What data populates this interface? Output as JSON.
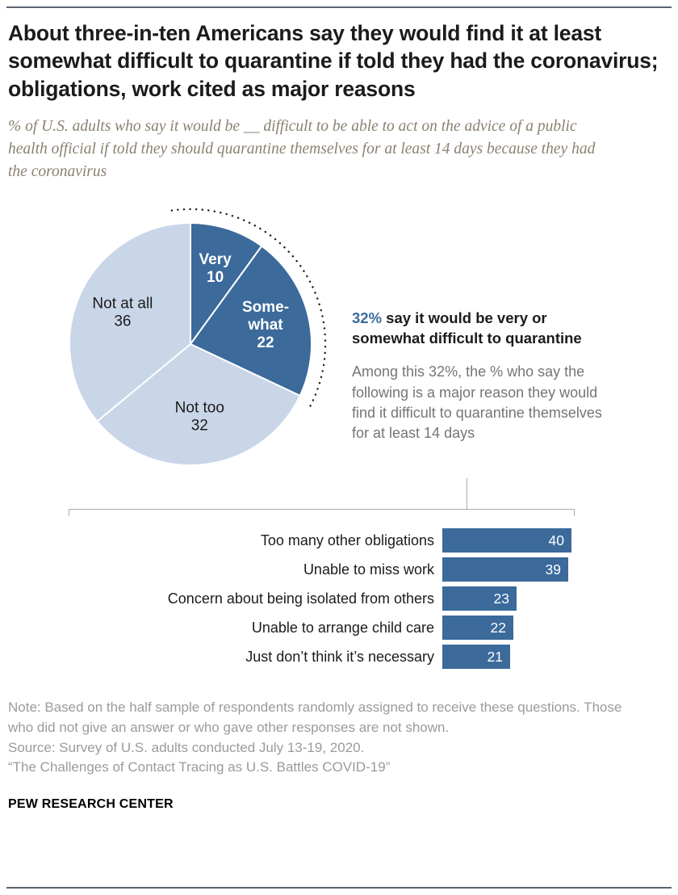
{
  "colors": {
    "dark_blue": "#3b6a9b",
    "light_blue": "#c9d6e8",
    "title_text": "#1b1b1b",
    "subtitle_text": "#8a8270",
    "explainer_text": "#757575",
    "note_text": "#9b9b9b",
    "divider_line": "#5a646d",
    "connector_line": "#ababab"
  },
  "header": {
    "title": "About three-in-ten Americans say they would find it at least somewhat difficult to quarantine if told they had the coronavirus; obligations, work cited as major reasons",
    "subtitle": "% of U.S. adults who say it would be __ difficult to be able to act on the advice of a public health official if told they should quarantine themselves for at least 14 days because they had the coronavirus"
  },
  "callout": {
    "highlight": "32%",
    "bold_rest": "say it would be very or somewhat difficult to quarantine",
    "explainer": "Among this 32%, the % who say the following is a major reason they would find it difficult to quarantine themselves for at least 14 days"
  },
  "chart_data": [
    {
      "type": "pie",
      "title": "Difficulty of quarantining for at least 14 days",
      "units": "% of U.S. adults",
      "start_angle_deg": 0,
      "direction": "clockwise",
      "segments": [
        {
          "label": "Very",
          "value": 10,
          "color": "#3b6a9b",
          "text_color": "#ffffff",
          "label_lines": [
            "Very",
            "10"
          ]
        },
        {
          "label": "Somewhat",
          "value": 22,
          "color": "#3b6a9b",
          "text_color": "#ffffff",
          "label_lines": [
            "Some-",
            "what",
            "22"
          ]
        },
        {
          "label": "Not too",
          "value": 32,
          "color": "#c9d6e8",
          "text_color": "#1b1b1b",
          "label_lines": [
            "Not too",
            "32"
          ]
        },
        {
          "label": "Not at all",
          "value": 36,
          "color": "#c9d6e8",
          "text_color": "#1b1b1b",
          "label_lines": [
            "Not at all",
            "36"
          ]
        }
      ],
      "annotation_arc_segments": [
        "Very",
        "Somewhat"
      ],
      "annotation_total": 32
    },
    {
      "type": "bar",
      "orientation": "horizontal",
      "units": "% citing as a major reason they would find it difficult to quarantine",
      "categories": [
        "Too many other obligations",
        "Unable to miss work",
        "Concern about being isolated from others",
        "Unable to arrange child care",
        "Just don’t think it’s necessary"
      ],
      "values": [
        40,
        39,
        23,
        22,
        21
      ],
      "xlim": [
        0,
        45
      ],
      "bar_color": "#3b6a9b",
      "value_labels_inside": true
    }
  ],
  "note": {
    "lines": [
      "Note: Based on the half sample of respondents randomly assigned to receive these questions. Those who did not give an answer or who gave other responses are not shown.",
      "Source: Survey of U.S. adults conducted July 13-19, 2020.",
      "“The Challenges of Contact Tracing as U.S. Battles COVID-19”"
    ]
  },
  "footer": {
    "brand": "PEW RESEARCH CENTER"
  }
}
